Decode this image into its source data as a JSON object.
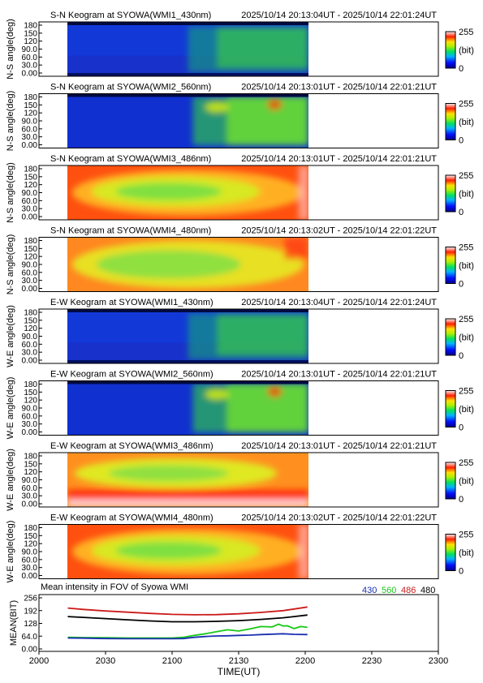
{
  "page": {
    "background": "#ffffff"
  },
  "keograms": [
    {
      "title": "S-N Keogram at SYOWA(WMI1_430nm)",
      "time_range": "2025/10/14 20:13:04UT - 2025/10/14 22:01:24UT",
      "ylabel": "N-S angle(deg)",
      "scheme": "blue-band",
      "colorbar": {
        "max": "255",
        "unit": "(bit)",
        "min": "0"
      }
    },
    {
      "title": "S-N Keogram at SYOWA(WMI2_560nm)",
      "time_range": "2025/10/14 20:13:01UT - 2025/10/14 22:01:21UT",
      "ylabel": "N-S angle(deg)",
      "scheme": "green-aurora",
      "colorbar": {
        "max": "255",
        "unit": "(bit)",
        "min": "0"
      }
    },
    {
      "title": "S-N Keogram at SYOWA(WMI3_486nm)",
      "time_range": "2025/10/14 20:13:01UT - 2025/10/14 22:01:21UT",
      "ylabel": "N-S angle(deg)",
      "scheme": "warm-oval",
      "colorbar": {
        "max": "255",
        "unit": "(bit)",
        "min": "0"
      }
    },
    {
      "title": "S-N Keogram at SYOWA(WMI4_480nm)",
      "time_range": "2025/10/14 20:13:02UT - 2025/10/14 22:01:22UT",
      "ylabel": "N-S angle(deg)",
      "scheme": "warm-oval-soft",
      "colorbar": {
        "max": "255",
        "unit": "(bit)",
        "min": "0"
      }
    },
    {
      "title": "E-W Keogram at SYOWA(WMI1_430nm)",
      "time_range": "2025/10/14 20:13:04UT - 2025/10/14 22:01:24UT",
      "ylabel": "W-E angle(deg)",
      "scheme": "blue-band",
      "colorbar": {
        "max": "255",
        "unit": "(bit)",
        "min": "0"
      }
    },
    {
      "title": "E-W Keogram at SYOWA(WMI2_560nm)",
      "time_range": "2025/10/14 20:13:01UT - 2025/10/14 22:01:21UT",
      "ylabel": "W-E angle(deg)",
      "scheme": "green-aurora",
      "colorbar": {
        "max": "255",
        "unit": "(bit)",
        "min": "0"
      }
    },
    {
      "title": "E-W Keogram at SYOWA(WMI3_486nm)",
      "time_range": "2025/10/14 20:13:01UT - 2025/10/14 22:01:21UT",
      "ylabel": "W-E angle(deg)",
      "scheme": "warm-bottom",
      "colorbar": {
        "max": "255",
        "unit": "(bit)",
        "min": "0"
      }
    },
    {
      "title": "E-W Keogram at SYOWA(WMI4_480nm)",
      "time_range": "2025/10/14 20:13:02UT - 2025/10/14 22:01:22UT",
      "ylabel": "W-E angle(deg)",
      "scheme": "warm-oval",
      "colorbar": {
        "max": "255",
        "unit": "(bit)",
        "min": "0"
      }
    }
  ],
  "keogram_yticks": [
    "180",
    "150",
    "120",
    "90.0",
    "60.0",
    "30.0",
    "0.00"
  ],
  "mean_panel": {
    "title": "Mean intensity in FOV of Syowa WMI",
    "ylabel": "MEAN(BIT)",
    "yticks": [
      "256",
      "192",
      "128",
      "64.0",
      "0.00"
    ],
    "legend": [
      {
        "label": "430",
        "color": "#1a2fb0"
      },
      {
        "label": "560",
        "color": "#18c818"
      },
      {
        "label": "486",
        "color": "#cc1a1a"
      },
      {
        "label": "480",
        "color": "#000000"
      }
    ]
  },
  "x_axis": {
    "xlabel": "TIME(UT)",
    "ticks": [
      "2000",
      "2030",
      "2100",
      "2130",
      "2200",
      "2230",
      "2300"
    ]
  },
  "chart_data": {
    "type": "line",
    "title": "Mean intensity in FOV of Syowa WMI",
    "xlabel": "TIME(UT)",
    "ylabel": "MEAN(BIT)",
    "xlim": [
      0,
      180
    ],
    "ylim": [
      0,
      256
    ],
    "x_tick_values": [
      0,
      30,
      60,
      90,
      120,
      150,
      180
    ],
    "x_ticks": [
      "2000",
      "2030",
      "2100",
      "2130",
      "2200",
      "2230",
      "2300"
    ],
    "y_tick_values": [
      256,
      192,
      128,
      64,
      0
    ],
    "y_ticks": [
      "256",
      "192",
      "128",
      "64.0",
      "0.00"
    ],
    "data_range": [
      "20:13",
      "22:01"
    ],
    "legend_position": "top-right",
    "series": [
      {
        "name": "486",
        "color": "#cc1a1a",
        "x": [
          13,
          20,
          30,
          40,
          50,
          60,
          70,
          80,
          90,
          100,
          110,
          115,
          121
        ],
        "y": [
          205,
          198,
          190,
          184,
          178,
          173,
          171,
          172,
          176,
          183,
          192,
          200,
          210
        ]
      },
      {
        "name": "480",
        "color": "#000000",
        "x": [
          13,
          20,
          30,
          40,
          50,
          60,
          70,
          80,
          90,
          100,
          110,
          115,
          121
        ],
        "y": [
          162,
          158,
          152,
          146,
          140,
          136,
          136,
          138,
          142,
          148,
          156,
          162,
          170
        ]
      },
      {
        "name": "560",
        "color": "#18c818",
        "x": [
          13,
          20,
          30,
          40,
          50,
          60,
          65,
          70,
          75,
          80,
          85,
          90,
          95,
          100,
          105,
          108,
          110,
          112,
          115,
          118,
          121
        ],
        "y": [
          58,
          57,
          56,
          55,
          55,
          55,
          58,
          68,
          76,
          86,
          96,
          90,
          100,
          112,
          110,
          124,
          115,
          116,
          102,
          112,
          108
        ]
      },
      {
        "name": "430",
        "color": "#1a2fb0",
        "x": [
          13,
          20,
          30,
          40,
          50,
          60,
          65,
          70,
          75,
          80,
          85,
          90,
          95,
          100,
          105,
          110,
          115,
          121
        ],
        "y": [
          55,
          54,
          52,
          51,
          51,
          51,
          52,
          58,
          62,
          65,
          66,
          68,
          69,
          72,
          74,
          76,
          73,
          72
        ]
      }
    ]
  }
}
